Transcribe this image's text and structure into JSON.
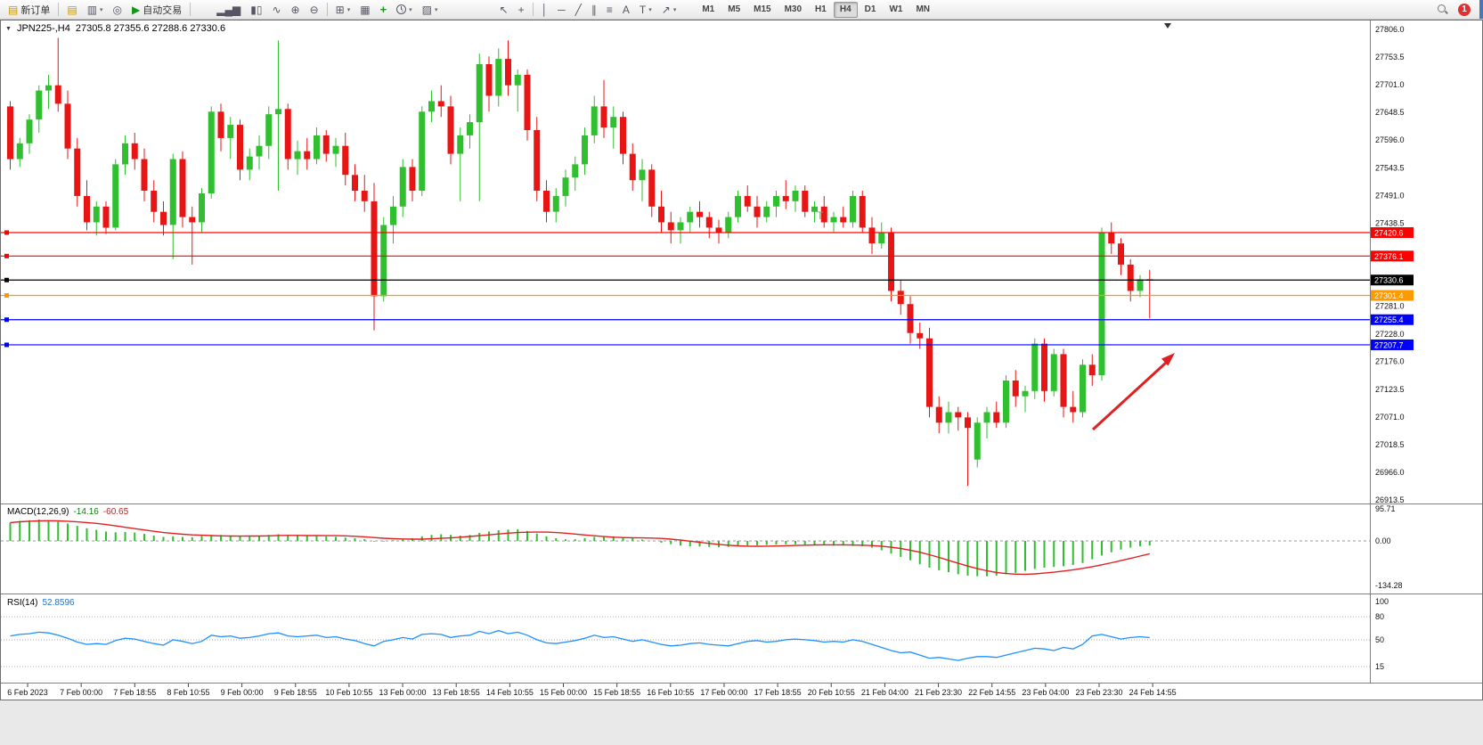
{
  "toolbar": {
    "new_order": "新订单",
    "auto_trading": "自动交易",
    "timeframes": [
      "M1",
      "M5",
      "M15",
      "M30",
      "H1",
      "H4",
      "D1",
      "W1",
      "MN"
    ],
    "active_timeframe": "H4",
    "notification_count": "1"
  },
  "icons": {
    "new_order": "▤",
    "charts": "▤",
    "profiles": "▥",
    "terminal": "◎",
    "auto_trading": "▶",
    "bars_chart": "▂▄▆",
    "candles_chart": "▮▯",
    "line_chart": "∿",
    "zoom_in": "⊕",
    "zoom_out": "⊖",
    "new_chart": "⊞",
    "tile_windows": "▦",
    "indicators": "+",
    "templates": "▨",
    "cursor": "↖",
    "crosshair": "+",
    "vline": "│",
    "hline": "─",
    "trendline": "╱",
    "channel": "∥",
    "fibonacci": "≡",
    "text_tool": "A",
    "label_tool": "T",
    "arrows_tool": "↗",
    "dropdown": "▾",
    "collapse_arrow": "▼"
  },
  "colors": {
    "up": "#2fbf2f",
    "down": "#e81515",
    "macd_hist": "#2fbf2f",
    "macd_signal": "#e02020",
    "rsi": "#1e90ff",
    "level_red": "#ff0000",
    "level_orange": "#ff9900",
    "level_blue": "#0000ff",
    "level_black": "#000000"
  },
  "chart_data": {
    "type": "candlestick",
    "symbol": "JPN225-",
    "period": "H4",
    "symbol_period": "JPN225-,H4",
    "ohlc": {
      "open": 27305.8,
      "high": 27355.6,
      "low": 27288.6,
      "close": 27330.6
    },
    "ohlc_text": "27305.8 27355.6 27288.6 27330.6",
    "y_axis": {
      "max": 27806.0,
      "min": 26913.5,
      "regular_labels": [
        27806.0,
        27753.5,
        27701.0,
        27648.5,
        27596.0,
        27543.5,
        27491.0,
        27438.5,
        27281.0,
        27228.0,
        27176.0,
        27123.5,
        27071.0,
        27018.5,
        26966.0,
        26913.5
      ]
    },
    "levels": [
      {
        "price": 27420.6,
        "color": "#ff0000"
      },
      {
        "price": 27376.1,
        "color": "#ff0000"
      },
      {
        "price": 27330.6,
        "color": "#000000"
      },
      {
        "price": 27301.4,
        "color": "#ff9900"
      },
      {
        "price": 27255.4,
        "color": "#0000ff"
      },
      {
        "price": 27207.7,
        "color": "#0000ff"
      }
    ],
    "candles": [
      [
        27660,
        27670,
        27540,
        27560
      ],
      [
        27560,
        27600,
        27545,
        27590
      ],
      [
        27590,
        27645,
        27570,
        27635
      ],
      [
        27635,
        27700,
        27610,
        27690
      ],
      [
        27690,
        27720,
        27655,
        27700
      ],
      [
        27700,
        27790,
        27650,
        27665
      ],
      [
        27665,
        27690,
        27560,
        27580
      ],
      [
        27580,
        27600,
        27470,
        27490
      ],
      [
        27490,
        27520,
        27425,
        27440
      ],
      [
        27440,
        27480,
        27415,
        27470
      ],
      [
        27470,
        27480,
        27418,
        27430
      ],
      [
        27430,
        27560,
        27425,
        27550
      ],
      [
        27550,
        27605,
        27530,
        27590
      ],
      [
        27590,
        27610,
        27540,
        27560
      ],
      [
        27560,
        27580,
        27480,
        27500
      ],
      [
        27500,
        27520,
        27440,
        27460
      ],
      [
        27460,
        27480,
        27415,
        27435
      ],
      [
        27435,
        27570,
        27370,
        27560
      ],
      [
        27560,
        27575,
        27430,
        27450
      ],
      [
        27450,
        27470,
        27360,
        27440
      ],
      [
        27440,
        27505,
        27420,
        27495
      ],
      [
        27495,
        27660,
        27485,
        27650
      ],
      [
        27650,
        27665,
        27575,
        27600
      ],
      [
        27600,
        27640,
        27560,
        27625
      ],
      [
        27625,
        27635,
        27520,
        27540
      ],
      [
        27540,
        27580,
        27520,
        27565
      ],
      [
        27565,
        27605,
        27540,
        27585
      ],
      [
        27585,
        27660,
        27560,
        27645
      ],
      [
        27645,
        27785,
        27500,
        27655
      ],
      [
        27655,
        27665,
        27540,
        27560
      ],
      [
        27560,
        27595,
        27530,
        27575
      ],
      [
        27575,
        27600,
        27540,
        27560
      ],
      [
        27560,
        27620,
        27550,
        27605
      ],
      [
        27605,
        27615,
        27555,
        27570
      ],
      [
        27570,
        27600,
        27545,
        27585
      ],
      [
        27585,
        27610,
        27510,
        27530
      ],
      [
        27530,
        27550,
        27480,
        27500
      ],
      [
        27500,
        27530,
        27460,
        27480
      ],
      [
        27480,
        27515,
        27235,
        27300
      ],
      [
        27300,
        27450,
        27290,
        27435
      ],
      [
        27435,
        27490,
        27400,
        27470
      ],
      [
        27470,
        27560,
        27450,
        27545
      ],
      [
        27545,
        27560,
        27480,
        27500
      ],
      [
        27500,
        27660,
        27490,
        27650
      ],
      [
        27650,
        27690,
        27630,
        27670
      ],
      [
        27670,
        27700,
        27640,
        27660
      ],
      [
        27660,
        27680,
        27550,
        27570
      ],
      [
        27570,
        27620,
        27480,
        27605
      ],
      [
        27605,
        27645,
        27580,
        27630
      ],
      [
        27630,
        27760,
        27480,
        27740
      ],
      [
        27740,
        27755,
        27650,
        27680
      ],
      [
        27680,
        27770,
        27660,
        27750
      ],
      [
        27750,
        27785,
        27680,
        27700
      ],
      [
        27700,
        27730,
        27650,
        27720
      ],
      [
        27720,
        27730,
        27595,
        27615
      ],
      [
        27615,
        27640,
        27480,
        27500
      ],
      [
        27500,
        27520,
        27440,
        27460
      ],
      [
        27460,
        27505,
        27440,
        27490
      ],
      [
        27490,
        27540,
        27470,
        27525
      ],
      [
        27525,
        27565,
        27500,
        27550
      ],
      [
        27550,
        27620,
        27530,
        27605
      ],
      [
        27605,
        27680,
        27590,
        27660
      ],
      [
        27660,
        27710,
        27600,
        27620
      ],
      [
        27620,
        27660,
        27580,
        27640
      ],
      [
        27640,
        27650,
        27550,
        27570
      ],
      [
        27570,
        27590,
        27500,
        27520
      ],
      [
        27520,
        27560,
        27480,
        27540
      ],
      [
        27540,
        27550,
        27450,
        27470
      ],
      [
        27470,
        27500,
        27420,
        27440
      ],
      [
        27440,
        27460,
        27400,
        27425
      ],
      [
        27425,
        27450,
        27400,
        27440
      ],
      [
        27440,
        27470,
        27420,
        27460
      ],
      [
        27460,
        27480,
        27430,
        27450
      ],
      [
        27450,
        27460,
        27410,
        27430
      ],
      [
        27430,
        27445,
        27400,
        27420
      ],
      [
        27420,
        27460,
        27410,
        27450
      ],
      [
        27450,
        27500,
        27440,
        27490
      ],
      [
        27490,
        27510,
        27460,
        27470
      ],
      [
        27470,
        27490,
        27430,
        27450
      ],
      [
        27450,
        27480,
        27440,
        27470
      ],
      [
        27470,
        27500,
        27450,
        27490
      ],
      [
        27490,
        27520,
        27465,
        27480
      ],
      [
        27480,
        27510,
        27460,
        27500
      ],
      [
        27500,
        27510,
        27450,
        27460
      ],
      [
        27460,
        27480,
        27440,
        27470
      ],
      [
        27470,
        27490,
        27430,
        27440
      ],
      [
        27440,
        27460,
        27420,
        27450
      ],
      [
        27450,
        27470,
        27430,
        27440
      ],
      [
        27440,
        27500,
        27430,
        27490
      ],
      [
        27490,
        27500,
        27420,
        27430
      ],
      [
        27430,
        27450,
        27380,
        27400
      ],
      [
        27400,
        27440,
        27390,
        27420
      ],
      [
        27420,
        27430,
        27290,
        27310
      ],
      [
        27310,
        27330,
        27265,
        27285
      ],
      [
        27285,
        27300,
        27210,
        27230
      ],
      [
        27230,
        27250,
        27200,
        27220
      ],
      [
        27220,
        27240,
        27070,
        27090
      ],
      [
        27090,
        27110,
        27040,
        27060
      ],
      [
        27060,
        27100,
        27040,
        27080
      ],
      [
        27080,
        27090,
        27045,
        27070
      ],
      [
        27070,
        27080,
        26940,
        27050
      ],
      [
        26990,
        27070,
        26975,
        27060
      ],
      [
        27060,
        27090,
        27030,
        27080
      ],
      [
        27080,
        27100,
        27050,
        27060
      ],
      [
        27060,
        27150,
        27050,
        27140
      ],
      [
        27140,
        27160,
        27090,
        27110
      ],
      [
        27110,
        27130,
        27080,
        27120
      ],
      [
        27120,
        27220,
        27105,
        27210
      ],
      [
        27210,
        27220,
        27100,
        27120
      ],
      [
        27120,
        27200,
        27110,
        27190
      ],
      [
        27190,
        27200,
        27070,
        27090
      ],
      [
        27090,
        27120,
        27060,
        27080
      ],
      [
        27080,
        27180,
        27070,
        27170
      ],
      [
        27170,
        27190,
        27130,
        27150
      ],
      [
        27150,
        27430,
        27140,
        27420
      ],
      [
        27420,
        27440,
        27380,
        27400
      ],
      [
        27400,
        27410,
        27340,
        27360
      ],
      [
        27360,
        27370,
        27290,
        27310
      ],
      [
        27310,
        27340,
        27298,
        27332
      ],
      [
        27332,
        27350,
        27258,
        27331
      ]
    ],
    "time_labels": [
      "6 Feb 2023",
      "7 Feb 00:00",
      "7 Feb 18:55",
      "8 Feb 10:55",
      "9 Feb 00:00",
      "9 Feb 18:55",
      "10 Feb 10:55",
      "13 Feb 00:00",
      "13 Feb 18:55",
      "14 Feb 10:55",
      "15 Feb 00:00",
      "15 Feb 18:55",
      "16 Feb 10:55",
      "17 Feb 00:00",
      "17 Feb 18:55",
      "20 Feb 10:55",
      "21 Feb 04:00",
      "21 Feb 23:30",
      "22 Feb 14:55",
      "23 Feb 04:00",
      "23 Feb 23:30",
      "24 Feb 14:55"
    ],
    "indicators": [
      {
        "id": "macd",
        "name": "MACD(12,26,9)",
        "values_text": [
          "-14.16",
          "-60.65"
        ],
        "axis": [
          95.71,
          0,
          -134.28
        ],
        "axis_text": [
          "95.71",
          "0.00",
          "-134.28"
        ],
        "max": 95.71,
        "min": -134.28,
        "histogram": [
          55,
          60,
          62,
          64,
          62,
          58,
          52,
          45,
          38,
          33,
          28,
          26,
          27,
          25,
          21,
          16,
          12,
          14,
          12,
          11,
          15,
          18,
          18,
          16,
          14,
          13,
          15,
          18,
          20,
          18,
          16,
          15,
          14,
          13,
          12,
          10,
          8,
          5,
          -2,
          -2,
          2,
          6,
          8,
          14,
          18,
          20,
          18,
          16,
          18,
          24,
          28,
          32,
          34,
          35,
          30,
          22,
          14,
          8,
          5,
          5,
          8,
          12,
          14,
          14,
          12,
          8,
          4,
          0,
          -5,
          -10,
          -14,
          -16,
          -17,
          -18,
          -19,
          -18,
          -16,
          -14,
          -13,
          -12,
          -11,
          -10,
          -10,
          -11,
          -12,
          -13,
          -14,
          -14,
          -15,
          -16,
          -20,
          -28,
          -38,
          -48,
          -58,
          -70,
          -80,
          -88,
          -94,
          -100,
          -104,
          -106,
          -106,
          -104,
          -100,
          -96,
          -90,
          -84,
          -80,
          -78,
          -76,
          -72,
          -66,
          -55,
          -44,
          -34,
          -26,
          -20,
          -16,
          -14
        ]
      },
      {
        "id": "rsi",
        "name": "RSI(14)",
        "value_text": "52.8596",
        "axis": [
          100,
          80,
          50,
          15
        ],
        "axis_text": [
          "100",
          "80",
          "50",
          "15"
        ],
        "levels": [
          80,
          50,
          15
        ],
        "max": 100,
        "min": 15,
        "values": [
          55,
          57,
          58,
          60,
          59,
          56,
          52,
          47,
          44,
          45,
          44,
          49,
          52,
          51,
          48,
          45,
          43,
          50,
          48,
          45,
          48,
          56,
          54,
          55,
          52,
          53,
          55,
          58,
          59,
          55,
          54,
          55,
          56,
          53,
          54,
          51,
          49,
          45,
          42,
          48,
          50,
          53,
          51,
          57,
          58,
          57,
          53,
          55,
          56,
          61,
          58,
          62,
          58,
          60,
          56,
          50,
          46,
          45,
          47,
          49,
          52,
          56,
          53,
          54,
          51,
          48,
          50,
          47,
          44,
          42,
          43,
          45,
          46,
          44,
          43,
          42,
          45,
          48,
          49,
          47,
          48,
          50,
          51,
          50,
          49,
          47,
          48,
          47,
          50,
          48,
          44,
          40,
          36,
          33,
          34,
          30,
          26,
          27,
          25,
          23,
          26,
          28,
          28,
          27,
          30,
          33,
          36,
          39,
          38,
          36,
          40,
          38,
          44,
          55,
          57,
          54,
          51,
          53,
          54,
          52.86
        ]
      }
    ],
    "annotations": {
      "arrow": {
        "color": "#e02020"
      },
      "label": {
        "text": "T",
        "color": "#74b874"
      }
    }
  }
}
